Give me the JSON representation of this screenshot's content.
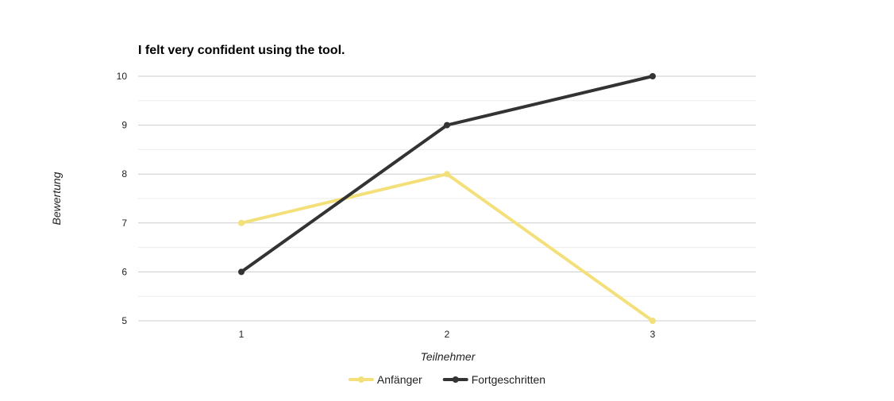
{
  "chart_data": {
    "type": "line",
    "title": "I felt very confident using the tool.",
    "xlabel": "Teilnehmer",
    "ylabel": "Bewertung",
    "categories": [
      "1",
      "2",
      "3"
    ],
    "ylim": [
      5,
      10
    ],
    "yticks": [
      "5",
      "6",
      "7",
      "8",
      "9",
      "10"
    ],
    "grid": true,
    "legend_position": "bottom",
    "series": [
      {
        "name": "Anfänger",
        "values": [
          7,
          8,
          5
        ],
        "color": "#f4e07a"
      },
      {
        "name": "Fortgeschritten",
        "values": [
          6,
          9,
          10
        ],
        "color": "#333333"
      }
    ]
  }
}
